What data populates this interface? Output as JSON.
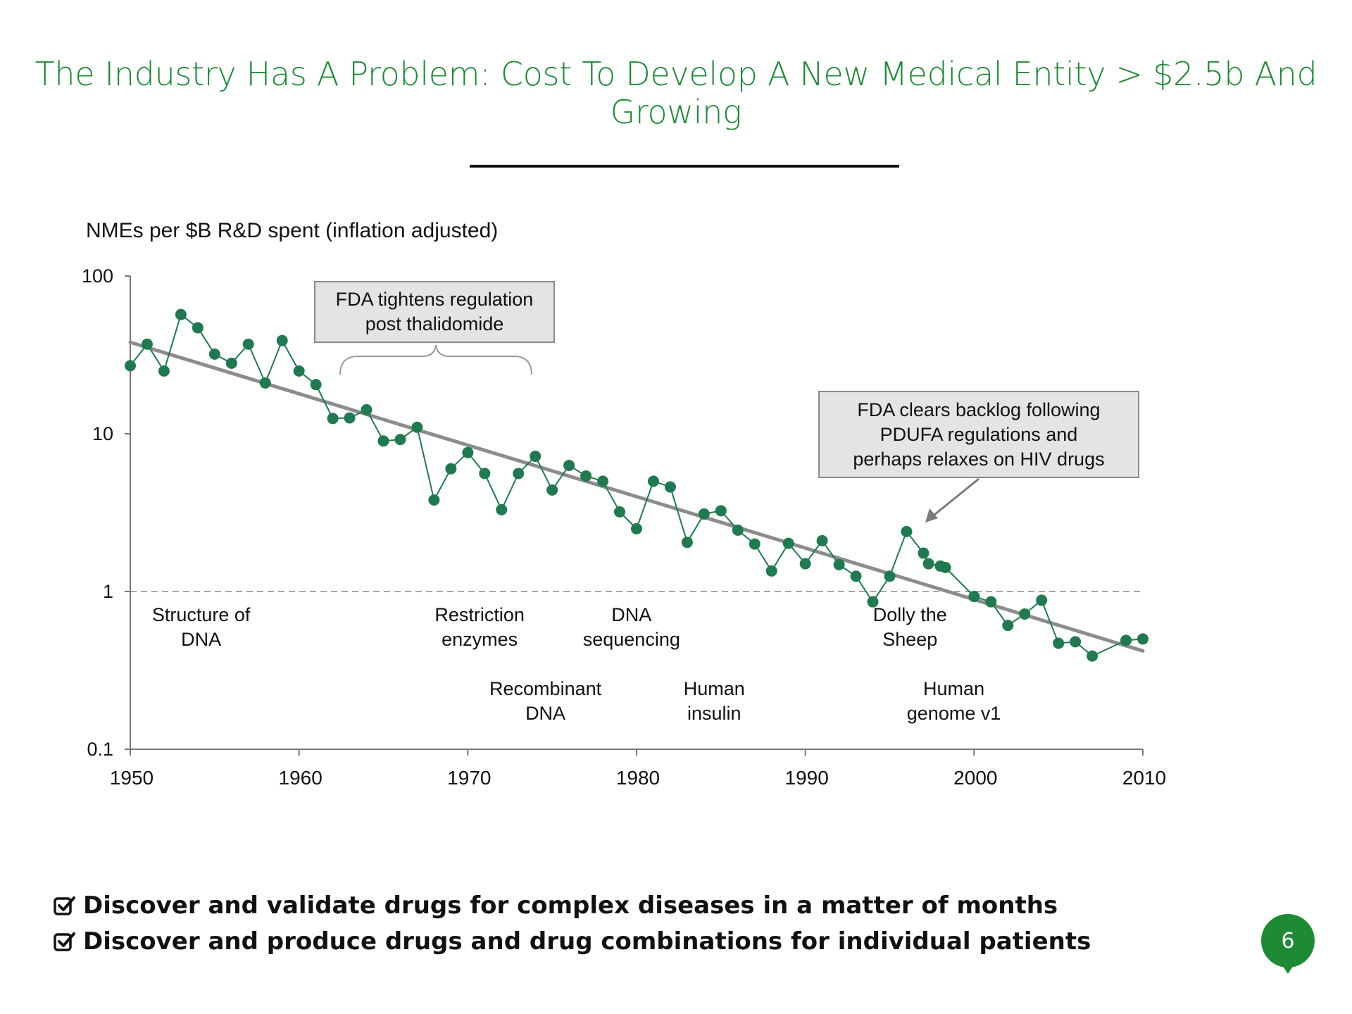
{
  "slide": {
    "title": "The Industry Has A Problem: Cost To Develop A New Medical Entity > $2.5b And Growing",
    "page_number": "6"
  },
  "bullets": [
    {
      "icon": "checkbox-checked-icon",
      "text": "Discover and validate drugs for complex diseases in a matter of months"
    },
    {
      "icon": "checkbox-checked-icon",
      "text": "Discover and produce drugs and drug combinations for individual patients"
    }
  ],
  "colors": {
    "title": "#1e8a35",
    "points": "#1f7a4f",
    "trend": "#8c8c8c",
    "badge": "#1e8a35"
  },
  "chart_data": {
    "type": "scatter",
    "title": "NMEs per $B R&D spent (inflation adjusted)",
    "xlabel": "",
    "ylabel": "",
    "x_scale": "linear",
    "y_scale": "log",
    "xlim": [
      1950,
      2010
    ],
    "ylim": [
      0.1,
      100
    ],
    "x_ticks": [
      "1950",
      "1960",
      "1970",
      "1980",
      "1990",
      "2000",
      "2010"
    ],
    "y_ticks": [
      "0.1",
      "1",
      "10",
      "100"
    ],
    "grid": false,
    "reference_line": {
      "y": 1,
      "style": "dashed"
    },
    "trend_line": {
      "from": [
        1950,
        38
      ],
      "to": [
        2010,
        0.42
      ]
    },
    "series": [
      {
        "points": [
          [
            1950,
            27
          ],
          [
            1951,
            37
          ],
          [
            1952,
            25
          ],
          [
            1953,
            57
          ],
          [
            1954,
            47
          ],
          [
            1955,
            32
          ],
          [
            1956,
            28
          ],
          [
            1957,
            37
          ],
          [
            1958,
            21
          ],
          [
            1959,
            39
          ],
          [
            1960,
            25
          ],
          [
            1961,
            20.5
          ],
          [
            1962,
            12.5
          ],
          [
            1963,
            12.6
          ],
          [
            1964,
            14.2
          ],
          [
            1965,
            9
          ],
          [
            1966,
            9.2
          ],
          [
            1967,
            11
          ],
          [
            1968,
            3.8
          ],
          [
            1969,
            6
          ],
          [
            1970,
            7.6
          ],
          [
            1971,
            5.6
          ],
          [
            1972,
            3.3
          ],
          [
            1973,
            5.6
          ],
          [
            1974,
            7.2
          ],
          [
            1975,
            4.4
          ],
          [
            1976,
            6.3
          ],
          [
            1977,
            5.4
          ],
          [
            1978,
            5
          ],
          [
            1979,
            3.2
          ],
          [
            1980,
            2.5
          ],
          [
            1981,
            5
          ],
          [
            1982,
            4.6
          ],
          [
            1983,
            2.05
          ],
          [
            1984,
            3.1
          ],
          [
            1985,
            3.25
          ],
          [
            1986,
            2.45
          ],
          [
            1987,
            2
          ],
          [
            1988,
            1.35
          ],
          [
            1989,
            2.02
          ],
          [
            1990,
            1.5
          ],
          [
            1991,
            2.1
          ],
          [
            1992,
            1.48
          ],
          [
            1993,
            1.25
          ],
          [
            1994,
            0.86
          ],
          [
            1995,
            1.25
          ],
          [
            1996,
            2.4
          ],
          [
            1997,
            1.75
          ],
          [
            1997.3,
            1.5
          ],
          [
            1998,
            1.45
          ],
          [
            1998.3,
            1.42
          ],
          [
            2000,
            0.93
          ],
          [
            2001,
            0.86
          ],
          [
            2002,
            0.61
          ],
          [
            2003,
            0.72
          ],
          [
            2004,
            0.88
          ],
          [
            2005,
            0.47
          ],
          [
            2006,
            0.48
          ],
          [
            2007,
            0.39
          ],
          [
            2009,
            0.49
          ],
          [
            2010,
            0.5
          ]
        ]
      }
    ],
    "annotations": {
      "boxes": [
        {
          "id": "thalidomide",
          "lines": [
            "FDA tightens regulation",
            "post thalidomide"
          ]
        },
        {
          "id": "pdufa",
          "lines": [
            "FDA clears backlog following",
            "PDUFA regulations and",
            "perhaps relaxes on HIV drugs"
          ]
        }
      ],
      "milestones": [
        {
          "x": 1954.2,
          "row": 1,
          "lines": [
            "Structure of",
            "DNA"
          ]
        },
        {
          "x": 1970.7,
          "row": 1,
          "lines": [
            "Restriction",
            "enzymes"
          ]
        },
        {
          "x": 1979.7,
          "row": 1,
          "lines": [
            "DNA",
            "sequencing"
          ]
        },
        {
          "x": 1996.2,
          "row": 1,
          "lines": [
            "Dolly the",
            "Sheep"
          ]
        },
        {
          "x": 1974.6,
          "row": 2,
          "lines": [
            "Recombinant",
            "DNA"
          ]
        },
        {
          "x": 1984.6,
          "row": 2,
          "lines": [
            "Human",
            "insulin"
          ]
        },
        {
          "x": 1998.8,
          "row": 2,
          "lines": [
            "Human",
            "genome v1"
          ]
        }
      ]
    }
  }
}
